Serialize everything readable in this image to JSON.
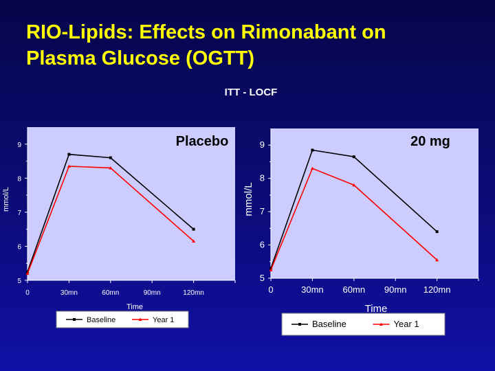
{
  "slide": {
    "title_line1": "RIO-Lipids: Effects on Rimonabant on",
    "title_line2": "Plasma Glucose (OGTT)",
    "subtitle": "ITT - LOCF"
  },
  "colors": {
    "title": "#ffff00",
    "plot_background": "#ccccff",
    "baseline": "#000000",
    "year1": "#ff0000"
  },
  "chart_data": [
    {
      "type": "line",
      "title": "Placebo",
      "xlabel": "Time",
      "ylabel": "mmol/L",
      "categories": [
        "0",
        "30mn",
        "60mn",
        "90mn",
        "120mn"
      ],
      "x": [
        0,
        30,
        60,
        90,
        120
      ],
      "ylim": [
        5,
        9.5
      ],
      "yticks": [
        "5",
        "6",
        "7",
        "8",
        "9"
      ],
      "legend_position": "bottom",
      "series": [
        {
          "name": "Baseline",
          "color": "#000000",
          "x": [
            0,
            30,
            60,
            120
          ],
          "values": [
            5.25,
            8.7,
            8.6,
            6.5
          ]
        },
        {
          "name": "Year 1",
          "color": "#ff0000",
          "x": [
            0,
            30,
            60,
            120
          ],
          "values": [
            5.2,
            8.35,
            8.3,
            6.15
          ]
        }
      ]
    },
    {
      "type": "line",
      "title": "20 mg",
      "xlabel": "Time",
      "ylabel": "mmol/L",
      "categories": [
        "0",
        "30mn",
        "60mn",
        "90mn",
        "120mn"
      ],
      "x": [
        0,
        30,
        60,
        90,
        120
      ],
      "ylim": [
        5,
        9.5
      ],
      "yticks": [
        "5",
        "6",
        "7",
        "8",
        "9"
      ],
      "legend_position": "bottom",
      "series": [
        {
          "name": "Baseline",
          "color": "#000000",
          "x": [
            0,
            30,
            60,
            120
          ],
          "values": [
            5.3,
            8.85,
            8.65,
            6.4
          ]
        },
        {
          "name": "Year 1",
          "color": "#ff0000",
          "x": [
            0,
            30,
            60,
            120
          ],
          "values": [
            5.25,
            8.3,
            7.8,
            5.55
          ]
        }
      ]
    }
  ]
}
